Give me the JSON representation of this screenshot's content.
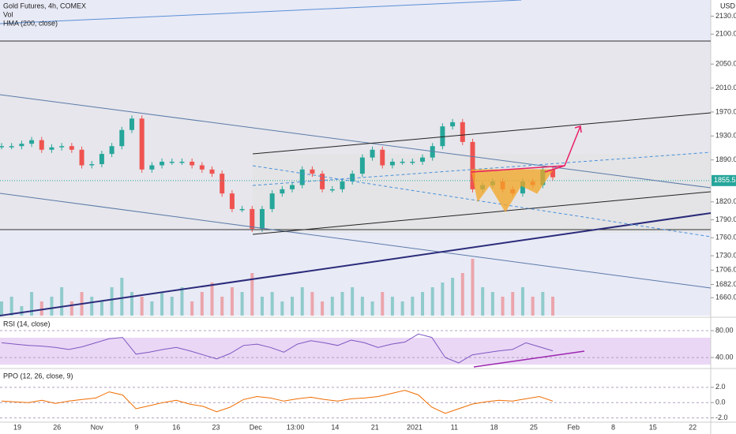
{
  "chart_data": [
    {
      "type": "candlestick",
      "title": "Gold Futures, 4h, COMEX",
      "volume_label": "Vol",
      "indicator": "HMA (200, close)",
      "currency": "USD",
      "last_price": {
        "value": 1855.5,
        "label": "1855.5"
      },
      "up_color": "#26a69a",
      "down_color": "#ef5350",
      "ylim": [
        1630,
        2157
      ],
      "yticks": [
        {
          "value": 2130,
          "label": "2130.0"
        },
        {
          "value": 2100,
          "label": "2100.0"
        },
        {
          "value": 2050,
          "label": "2050.0"
        },
        {
          "value": 2010,
          "label": "2010.0"
        },
        {
          "value": 1970,
          "label": "1970.0"
        },
        {
          "value": 1930,
          "label": "1930.0"
        },
        {
          "value": 1890,
          "label": "1890.0"
        },
        {
          "value": 1820,
          "label": "1820.0"
        },
        {
          "value": 1790,
          "label": "1790.0"
        },
        {
          "value": 1760,
          "label": "1760.0"
        },
        {
          "value": 1730,
          "label": "1730.0"
        },
        {
          "value": 1706,
          "label": "1706.0"
        },
        {
          "value": 1682,
          "label": "1682.0"
        },
        {
          "value": 1660,
          "label": "1660.0"
        }
      ],
      "x_labels": [
        "19",
        "26",
        "Nov",
        "9",
        "16",
        "23",
        "Dec",
        "13:00",
        "14",
        "21",
        "2021",
        "11",
        "18",
        "25",
        "Feb",
        "8",
        "15",
        "22"
      ],
      "values": [
        1913,
        1913,
        1917,
        1923,
        1907,
        1911,
        1913,
        1907,
        1881,
        1883,
        1900,
        1913,
        1940,
        1959,
        1874,
        1881,
        1887,
        1887,
        1887,
        1881,
        1874,
        1867,
        1834,
        1808,
        1808,
        1775,
        1808,
        1834,
        1841,
        1848,
        1874,
        1867,
        1841,
        1841,
        1854,
        1867,
        1894,
        1907,
        1881,
        1887,
        1887,
        1887,
        1894,
        1913,
        1946,
        1953,
        1920,
        1841,
        1848,
        1854,
        1841,
        1834,
        1854,
        1848,
        1874,
        1861
      ],
      "volume": [
        3,
        4,
        2,
        5,
        3,
        4,
        6,
        3,
        5,
        4,
        3,
        6,
        8,
        5,
        4,
        3,
        5,
        4,
        6,
        3,
        5,
        7,
        4,
        6,
        5,
        9,
        4,
        5,
        3,
        4,
        6,
        5,
        3,
        4,
        5,
        6,
        4,
        3,
        5,
        4,
        3,
        4,
        5,
        6,
        7,
        8,
        9,
        12,
        6,
        5,
        4,
        5,
        6,
        4,
        5,
        4
      ]
    },
    {
      "type": "line",
      "title": "RSI (14, close)",
      "color": "#7e57c2",
      "ylim": [
        26,
        96.5
      ],
      "yticks": [
        {
          "value": 80,
          "label": "80.00"
        },
        {
          "value": 40,
          "label": "40.00"
        }
      ],
      "values": [
        62,
        60,
        58,
        57,
        55,
        52,
        56,
        62,
        68,
        70,
        45,
        48,
        52,
        55,
        50,
        44,
        38,
        46,
        58,
        60,
        55,
        48,
        60,
        65,
        62,
        58,
        66,
        62,
        55,
        60,
        63,
        75,
        70,
        40,
        32,
        44,
        47,
        50,
        52,
        62,
        56,
        50
      ]
    },
    {
      "type": "line",
      "title": "PPO (12, 26, close, 9)",
      "color": "#ef6c00",
      "ylim": [
        -2.56,
        4.15
      ],
      "yticks": [
        {
          "value": 2,
          "label": "2.0"
        },
        {
          "value": 0,
          "label": "0.0"
        },
        {
          "value": -2,
          "label": "-2.0"
        }
      ],
      "values": [
        0.2,
        0.1,
        0,
        0.3,
        -0.1,
        0.2,
        0.4,
        0.6,
        1.4,
        1.0,
        -0.8,
        -0.4,
        0,
        0.3,
        -0.2,
        -0.5,
        -1.2,
        -0.6,
        0.4,
        0.8,
        0.6,
        0.2,
        0.5,
        0.7,
        0.4,
        0.2,
        0.5,
        0.6,
        0.8,
        1.2,
        1.6,
        1.0,
        -0.6,
        -1.4,
        -0.8,
        -0.2,
        0.1,
        0.3,
        0.2,
        0.5,
        0.8,
        0.2
      ]
    }
  ]
}
